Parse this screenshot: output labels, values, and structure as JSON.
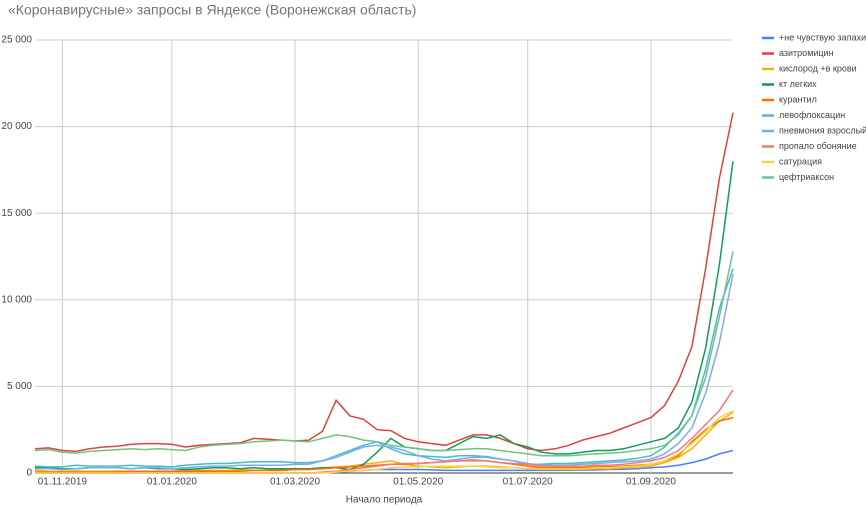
{
  "chart_data": {
    "type": "line",
    "title": "«Коронавирусные» запросы в Яндексе (Воронежская область)",
    "x_label": "Начало периода",
    "categories": [
      null,
      null,
      "01.11.2019",
      null,
      null,
      null,
      null,
      null,
      null,
      null,
      "01.01.2020",
      null,
      null,
      null,
      null,
      null,
      null,
      null,
      null,
      "01.03.2020",
      null,
      null,
      null,
      null,
      null,
      null,
      null,
      null,
      "01.05.2020",
      null,
      null,
      null,
      null,
      null,
      null,
      null,
      "01.07.2020",
      null,
      null,
      null,
      null,
      null,
      null,
      null,
      null,
      "01.09.2020",
      null,
      null,
      null,
      null,
      null,
      null
    ],
    "ylim": [
      0,
      25000
    ],
    "yticks": [
      0,
      {
        "value": 5000,
        "label": "5 000"
      },
      {
        "value": 10000,
        "label": "10 000"
      },
      {
        "value": 15000,
        "label": "15 000"
      },
      {
        "value": 20000,
        "label": "20 000"
      },
      {
        "value": 25000,
        "label": "25 000"
      }
    ],
    "grid": true,
    "legend": "right",
    "series": [
      {
        "name": "+не чувствую запахи",
        "color": "#4285f4",
        "values": [
          0,
          0,
          0,
          0,
          0,
          0,
          0,
          0,
          0,
          0,
          0,
          0,
          0,
          0,
          0,
          0,
          0,
          0,
          0,
          0,
          0,
          20,
          50,
          100,
          150,
          200,
          200,
          200,
          200,
          180,
          150,
          150,
          150,
          150,
          150,
          150,
          150,
          150,
          150,
          160,
          170,
          180,
          200,
          220,
          250,
          300,
          350,
          450,
          600,
          800,
          1100,
          1300
        ]
      },
      {
        "name": "азитромицин",
        "color": "#db4437",
        "values": [
          1400,
          1450,
          1300,
          1250,
          1400,
          1500,
          1550,
          1650,
          1700,
          1700,
          1650,
          1500,
          1600,
          1650,
          1700,
          1750,
          2000,
          1950,
          1900,
          1850,
          1900,
          2400,
          4200,
          3300,
          3100,
          2500,
          2450,
          2000,
          1800,
          1700,
          1600,
          1900,
          2200,
          2200,
          2000,
          1700,
          1400,
          1300,
          1400,
          1600,
          1900,
          2100,
          2300,
          2600,
          2900,
          3200,
          3900,
          5300,
          7300,
          11800,
          17000,
          20800
        ]
      },
      {
        "name": "кислород +в крови",
        "color": "#f4b400",
        "values": [
          150,
          100,
          100,
          120,
          100,
          100,
          120,
          100,
          100,
          100,
          100,
          150,
          150,
          150,
          150,
          200,
          150,
          150,
          150,
          200,
          200,
          300,
          350,
          400,
          500,
          600,
          700,
          500,
          400,
          350,
          300,
          350,
          400,
          400,
          350,
          300,
          250,
          200,
          200,
          200,
          200,
          250,
          250,
          300,
          350,
          400,
          600,
          900,
          1400,
          2200,
          3000,
          3500
        ]
      },
      {
        "name": "кт легких",
        "color": "#0f9d58",
        "values": [
          300,
          300,
          250,
          250,
          300,
          300,
          300,
          250,
          300,
          250,
          250,
          200,
          250,
          300,
          300,
          250,
          300,
          250,
          250,
          250,
          250,
          300,
          300,
          200,
          500,
          1200,
          2000,
          1500,
          1400,
          1300,
          1300,
          1700,
          2100,
          2000,
          2200,
          1700,
          1500,
          1200,
          1100,
          1100,
          1200,
          1300,
          1300,
          1400,
          1600,
          1800,
          2000,
          2600,
          4100,
          7200,
          12000,
          18000
        ]
      },
      {
        "name": "курантил",
        "color": "#ff6d01",
        "values": [
          50,
          50,
          50,
          50,
          50,
          50,
          50,
          100,
          100,
          100,
          100,
          100,
          100,
          100,
          100,
          100,
          150,
          150,
          150,
          200,
          200,
          250,
          300,
          350,
          400,
          450,
          500,
          500,
          550,
          600,
          650,
          700,
          750,
          700,
          600,
          500,
          400,
          300,
          300,
          300,
          300,
          350,
          350,
          400,
          450,
          500,
          700,
          1000,
          1800,
          2500,
          3000,
          3200
        ]
      },
      {
        "name": "левофлоксацин",
        "color": "#46bdc6",
        "values": [
          400,
          350,
          350,
          450,
          400,
          400,
          400,
          450,
          400,
          400,
          350,
          450,
          500,
          550,
          550,
          600,
          650,
          650,
          650,
          600,
          600,
          700,
          1000,
          1300,
          1600,
          1800,
          1400,
          1100,
          1000,
          950,
          900,
          1000,
          1000,
          950,
          800,
          700,
          500,
          500,
          550,
          550,
          600,
          650,
          700,
          750,
          850,
          1000,
          1500,
          2300,
          3300,
          6000,
          9500,
          11800
        ]
      },
      {
        "name": "пневмония взрослый",
        "color": "#7baaf7",
        "values": [
          250,
          250,
          200,
          250,
          300,
          300,
          300,
          250,
          300,
          300,
          250,
          300,
          350,
          400,
          400,
          450,
          450,
          450,
          450,
          500,
          500,
          700,
          900,
          1200,
          1500,
          1600,
          1500,
          1300,
          1000,
          800,
          700,
          800,
          900,
          900,
          800,
          700,
          550,
          450,
          450,
          450,
          500,
          550,
          600,
          650,
          700,
          800,
          1100,
          1700,
          2600,
          4600,
          7500,
          11500
        ]
      },
      {
        "name": "пропало обоняние",
        "color": "#f07b72",
        "values": [
          0,
          0,
          0,
          0,
          0,
          0,
          0,
          0,
          0,
          0,
          0,
          0,
          0,
          0,
          0,
          0,
          0,
          0,
          0,
          0,
          0,
          50,
          100,
          200,
          300,
          400,
          500,
          550,
          550,
          600,
          650,
          700,
          700,
          700,
          600,
          550,
          500,
          400,
          400,
          400,
          400,
          450,
          450,
          500,
          600,
          700,
          900,
          1300,
          2000,
          2800,
          3600,
          4800
        ]
      },
      {
        "name": "сатурация",
        "color": "#fcd04f",
        "values": [
          0,
          0,
          0,
          0,
          0,
          0,
          0,
          0,
          0,
          0,
          0,
          0,
          0,
          0,
          0,
          0,
          0,
          0,
          0,
          0,
          0,
          0,
          50,
          100,
          150,
          200,
          300,
          350,
          350,
          400,
          400,
          400,
          400,
          350,
          300,
          300,
          250,
          250,
          250,
          250,
          250,
          300,
          300,
          350,
          400,
          500,
          700,
          1100,
          1700,
          2400,
          3200,
          3600
        ]
      },
      {
        "name": "цефтриаксон",
        "color": "#71c287",
        "values": [
          1300,
          1350,
          1200,
          1150,
          1250,
          1300,
          1350,
          1400,
          1350,
          1400,
          1350,
          1300,
          1500,
          1600,
          1650,
          1700,
          1800,
          1850,
          1900,
          1850,
          1800,
          2000,
          2200,
          2100,
          1900,
          1800,
          1600,
          1500,
          1400,
          1300,
          1300,
          1350,
          1400,
          1400,
          1300,
          1200,
          1100,
          1000,
          1000,
          1000,
          1050,
          1100,
          1150,
          1200,
          1300,
          1400,
          1600,
          2200,
          3300,
          5500,
          9000,
          12800
        ]
      }
    ]
  }
}
